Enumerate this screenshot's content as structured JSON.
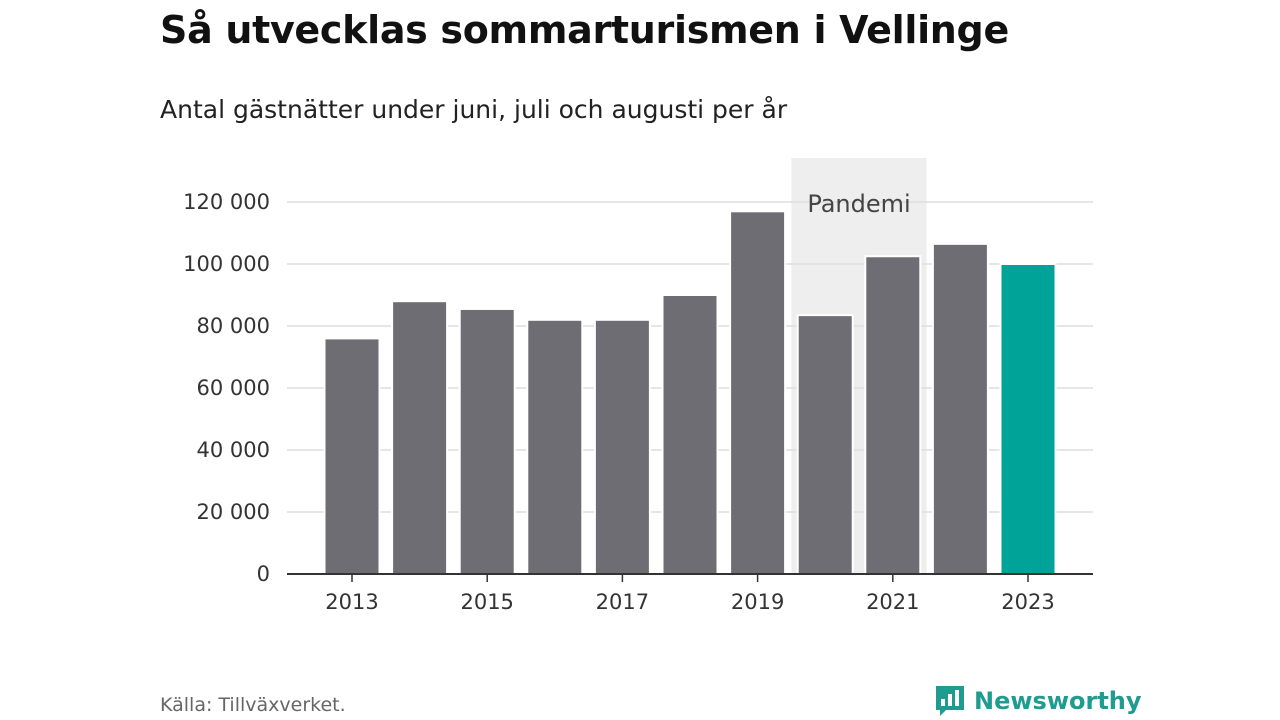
{
  "title": "Så utvecklas sommarturismen i Vellinge",
  "subtitle": "Antal gästnätter under juni, juli och augusti per år",
  "source": "Källa: Tillväxverket.",
  "brand": {
    "name": "Newsworthy",
    "icon": "bar-chart-speech-bubble-icon"
  },
  "colors": {
    "bar": "#6e6d73",
    "highlight": "#00a398",
    "shade": "#eeeeee",
    "grid": "#dddddd",
    "axis": "#333333",
    "brand": "#1f9b8f"
  },
  "chart_data": {
    "type": "bar",
    "categories": [
      "2013",
      "2014",
      "2015",
      "2016",
      "2017",
      "2018",
      "2019",
      "2020",
      "2021",
      "2022",
      "2023"
    ],
    "values": [
      76000,
      88000,
      85500,
      82000,
      82000,
      90000,
      117000,
      83500,
      102500,
      106500,
      100000
    ],
    "x_tick_labels": [
      "2013",
      "2015",
      "2017",
      "2019",
      "2021",
      "2023"
    ],
    "y_ticks": [
      0,
      20000,
      40000,
      60000,
      80000,
      100000,
      120000
    ],
    "y_tick_labels": [
      "0",
      "20 000",
      "40 000",
      "60 000",
      "80 000",
      "100 000",
      "120 000"
    ],
    "ylim": [
      0,
      130000
    ],
    "highlight_category": "2023",
    "grid": true,
    "annotation": {
      "label": "Pandemi",
      "from": "2020",
      "to": "2021"
    }
  }
}
